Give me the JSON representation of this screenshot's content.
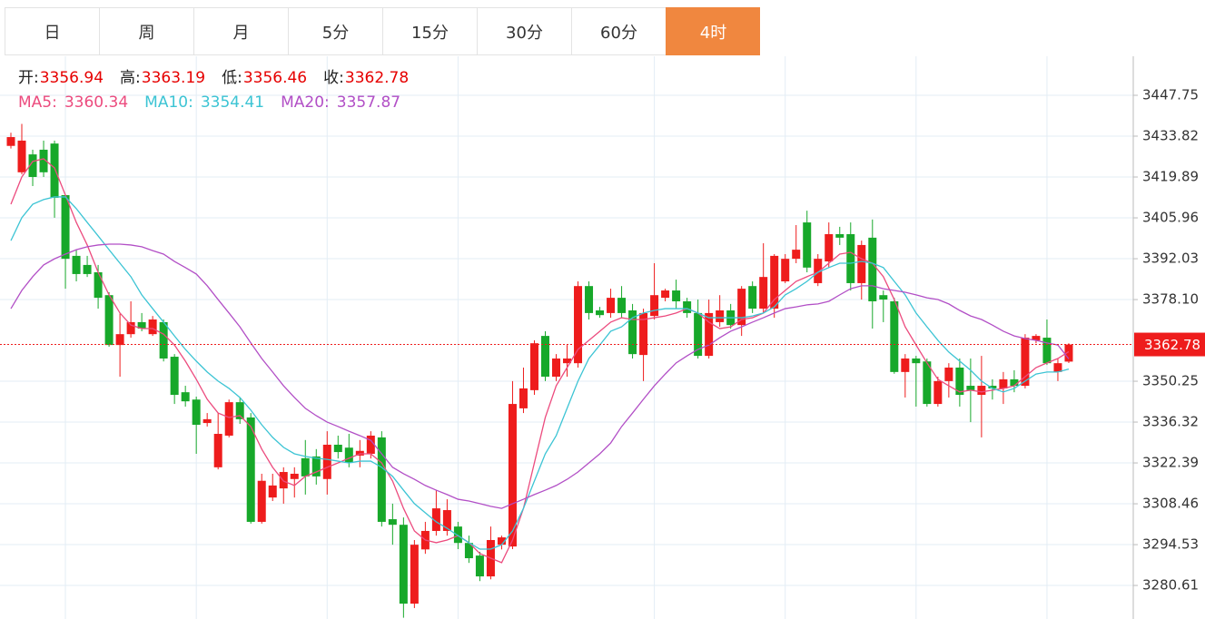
{
  "tabs": [
    "日",
    "周",
    "月",
    "5分",
    "15分",
    "30分",
    "60分",
    "4时"
  ],
  "active_tab": "4时",
  "chart_data": {
    "type": "candlestick",
    "up_color": "#ee1c1c",
    "down_color": "#17a82a",
    "grid": true,
    "ohlc_labels": [
      "开:",
      "高:",
      "低:",
      "收:"
    ],
    "open": [
      3430.5,
      3421.5,
      3427.6,
      3429.2,
      3431.3,
      3413.7,
      3393,
      3389.9,
      3387.4,
      3379.6,
      3362.6,
      3366.3,
      3370.4,
      3366.3,
      3370.4,
      3358.6,
      3346.5,
      3344,
      3336,
      3320.9,
      3331.7,
      3343.1,
      3337.9,
      3302.3,
      3310.6,
      3313.7,
      3316.9,
      3324,
      3324.6,
      3316.9,
      3328.6,
      3327.6,
      3324.9,
      3325.5,
      3331.1,
      3303.2,
      3301.3,
      3274.4,
      3292.9,
      3299.2,
      3299.2,
      3300.7,
      3295.1,
      3290.8,
      3283.7,
      3294.5,
      3293.9,
      3341,
      3347.2,
      3365.7,
      3351.8,
      3356.4,
      3356.4,
      3382.7,
      3374.4,
      3373.5,
      3378.7,
      3374.4,
      3359.2,
      3372.5,
      3378.7,
      3381.2,
      3377.5,
      3373.5,
      3358.9,
      3370.4,
      3374.4,
      3369.4,
      3382.7,
      3375,
      3375,
      3384.3,
      3392,
      3404.4,
      3383.7,
      3391.1,
      3400.4,
      3400.4,
      3383.7,
      3399.2,
      3379.6,
      3377.5,
      3353.4,
      3358,
      3357,
      3342.5,
      3350.3,
      3354.9,
      3348.7,
      3345.6,
      3348.7,
      3347.8,
      3350.9,
      3348.7,
      3364.2,
      3365.1,
      3353.4,
      3356.94
    ],
    "high": [
      3435,
      3438,
      3429.2,
      3432.3,
      3432.3,
      3413.7,
      3395.1,
      3393,
      3389.9,
      3380.6,
      3373.3,
      3377.5,
      3373.5,
      3372.5,
      3371.3,
      3359.5,
      3348.7,
      3345,
      3339.4,
      3339.4,
      3344,
      3344.6,
      3339.4,
      3318.7,
      3318.7,
      3320.9,
      3320.9,
      3330.2,
      3327.1,
      3333.2,
      3331.7,
      3332.3,
      3330.2,
      3333.2,
      3333.2,
      3308.5,
      3303.8,
      3296.1,
      3302.3,
      3313.1,
      3310,
      3302.3,
      3297.6,
      3292.1,
      3300.7,
      3297.6,
      3350.3,
      3354.9,
      3364.2,
      3367.3,
      3359.5,
      3362.6,
      3384.3,
      3384.3,
      3375.6,
      3381.8,
      3382.7,
      3376.6,
      3375,
      3390.5,
      3381.8,
      3384.9,
      3378.7,
      3378.1,
      3378.1,
      3379.6,
      3376.6,
      3382.7,
      3384.3,
      3397.3,
      3393.6,
      3393.6,
      3403.5,
      3408.4,
      3393.6,
      3404.4,
      3402.9,
      3404.4,
      3398.2,
      3405.4,
      3381.2,
      3378.7,
      3359.5,
      3358.9,
      3358,
      3351.8,
      3356.4,
      3358,
      3358,
      3358.9,
      3350.9,
      3353.4,
      3354,
      3366.3,
      3366.3,
      3371.3,
      3358,
      3363.19
    ],
    "low": [
      3429.6,
      3420.8,
      3416.8,
      3419.9,
      3406,
      3381.8,
      3384.3,
      3385.8,
      3375,
      3362,
      3351.8,
      3365.1,
      3367.3,
      3365.7,
      3357,
      3342.5,
      3341.6,
      3325.5,
      3334.8,
      3320.2,
      3331.1,
      3335.7,
      3301.7,
      3301.7,
      3309.4,
      3308.5,
      3310.6,
      3311.6,
      3315,
      3311.6,
      3323.9,
      3320.9,
      3320.9,
      3323.9,
      3300.7,
      3294.5,
      3269.6,
      3272.9,
      3291.4,
      3297.6,
      3297.6,
      3293,
      3288.3,
      3282.1,
      3282.7,
      3292.9,
      3293,
      3339.4,
      3345.6,
      3350.3,
      3350.3,
      3351.8,
      3354.9,
      3371.3,
      3371.9,
      3371.9,
      3371.9,
      3358,
      3350.3,
      3371.3,
      3377.5,
      3375,
      3371.9,
      3358,
      3358,
      3368.8,
      3368.2,
      3365.7,
      3373.5,
      3373.5,
      3371.9,
      3383.7,
      3390.5,
      3387.4,
      3382.7,
      3389,
      3396.7,
      3381.2,
      3378.1,
      3368.2,
      3370.4,
      3352.8,
      3344.7,
      3341.6,
      3341.6,
      3341.6,
      3344.7,
      3341.6,
      3336.3,
      3331.1,
      3344,
      3342.5,
      3346.5,
      3347.8,
      3363.2,
      3355.8,
      3350.3,
      3356.46
    ],
    "close": [
      3433.5,
      3432.3,
      3419.9,
      3421.5,
      3412.8,
      3392,
      3386.8,
      3386.8,
      3378.7,
      3362.6,
      3366.3,
      3370.4,
      3368.2,
      3371.3,
      3358,
      3345.6,
      3343.4,
      3335.4,
      3337.3,
      3332.3,
      3343.1,
      3337.3,
      3302.3,
      3316.3,
      3314.7,
      3319.3,
      3318.7,
      3317.8,
      3317.8,
      3328.6,
      3326.1,
      3322.4,
      3326.5,
      3331.7,
      3302.3,
      3301.3,
      3274.4,
      3294.5,
      3299.2,
      3306.9,
      3306.3,
      3295.1,
      3289.9,
      3283.7,
      3296.1,
      3297,
      3342.5,
      3347.8,
      3363.2,
      3351.8,
      3358,
      3358,
      3382.7,
      3373.5,
      3372.8,
      3378.7,
      3373.5,
      3359.5,
      3373.5,
      3379.6,
      3381.2,
      3377.5,
      3373.5,
      3358.9,
      3373.5,
      3374.4,
      3369.4,
      3381.8,
      3375,
      3385.8,
      3393,
      3392,
      3395.1,
      3389,
      3392,
      3400.4,
      3399.2,
      3383.7,
      3396.7,
      3377.5,
      3378.1,
      3353.4,
      3358,
      3356.4,
      3342.5,
      3350.3,
      3354.9,
      3345.6,
      3347.2,
      3348.7,
      3347.8,
      3350.9,
      3348.7,
      3365.1,
      3365.7,
      3356.4,
      3356.4,
      3362.78
    ],
    "series": [
      {
        "name": "MA5:",
        "color": "#ec4b7e",
        "values": [
          3410.6,
          3419.9,
          3425.2,
          3426.1,
          3423.0,
          3413.7,
          3404.4,
          3396.7,
          3387.4,
          3379.7,
          3373.5,
          3369.4,
          3368.2,
          3368.2,
          3366.3,
          3362.6,
          3357.1,
          3350.9,
          3344.1,
          3339.4,
          3337.9,
          3338.5,
          3334.8,
          3327.1,
          3320.9,
          3316.2,
          3314.7,
          3317.8,
          3319.3,
          3320.9,
          3322.4,
          3324.0,
          3325.5,
          3325.5,
          3322.4,
          3316.2,
          3306.9,
          3299.2,
          3296.1,
          3295.2,
          3296.1,
          3297.6,
          3295.2,
          3291.5,
          3289.9,
          3288.4,
          3296.1,
          3306.9,
          3322.4,
          3337.9,
          3348.7,
          3354.9,
          3361.1,
          3364.2,
          3367.3,
          3370.4,
          3371.9,
          3371.3,
          3371.3,
          3371.9,
          3372.5,
          3373.5,
          3375.0,
          3373.5,
          3370.4,
          3368.2,
          3368.8,
          3371.3,
          3371.9,
          3373.5,
          3378.1,
          3381.2,
          3384.3,
          3385.9,
          3387.4,
          3390.5,
          3393.6,
          3394.2,
          3392.0,
          3390.5,
          3385.9,
          3378.1,
          3368.8,
          3362.6,
          3356.5,
          3350.9,
          3348.7,
          3346.6,
          3347.2,
          3346.6,
          3347.2,
          3347.8,
          3348.7,
          3351.8,
          3354.9,
          3356.5,
          3358.0,
          3360.34
        ]
      },
      {
        "name": "MA10:",
        "color": "#3cc4d4",
        "values": [
          3398.2,
          3406.0,
          3410.6,
          3412.2,
          3413.1,
          3413.1,
          3409.1,
          3404.4,
          3399.8,
          3395.1,
          3390.5,
          3385.9,
          3379.7,
          3375.0,
          3370.4,
          3365.7,
          3361.1,
          3357.1,
          3353.4,
          3350.3,
          3347.8,
          3344.7,
          3340.4,
          3335.4,
          3331.1,
          3327.7,
          3325.5,
          3324.6,
          3324.0,
          3323.6,
          3323.0,
          3322.4,
          3323.0,
          3323.0,
          3320.9,
          3317.8,
          3313.1,
          3308.5,
          3305.4,
          3302.3,
          3300.1,
          3297.6,
          3295.2,
          3293.0,
          3293.0,
          3294.5,
          3299.2,
          3306.9,
          3316.2,
          3325.5,
          3331.7,
          3341.0,
          3350.3,
          3358.0,
          3362.6,
          3367.3,
          3368.8,
          3371.9,
          3373.5,
          3374.4,
          3375.0,
          3375.0,
          3375.0,
          3373.5,
          3371.9,
          3371.9,
          3371.9,
          3371.9,
          3372.5,
          3373.5,
          3375.6,
          3379.7,
          3381.8,
          3384.3,
          3387.4,
          3389.0,
          3390.5,
          3390.5,
          3391.1,
          3390.5,
          3389.0,
          3384.3,
          3379.7,
          3373.5,
          3368.8,
          3364.2,
          3360.2,
          3357.1,
          3354.0,
          3350.3,
          3347.8,
          3346.6,
          3347.8,
          3350.3,
          3352.7,
          3353.4,
          3353.4,
          3354.41
        ]
      },
      {
        "name": "MA20:",
        "color": "#b24fc6",
        "values": [
          3375.0,
          3381.2,
          3385.9,
          3389.9,
          3392.0,
          3393.6,
          3395.1,
          3396.1,
          3396.7,
          3397.0,
          3397.0,
          3396.7,
          3396.1,
          3394.8,
          3393.6,
          3391.1,
          3389.0,
          3386.8,
          3382.8,
          3378.1,
          3373.5,
          3368.8,
          3363.3,
          3358.0,
          3353.4,
          3348.7,
          3344.7,
          3341.0,
          3338.5,
          3336.3,
          3334.8,
          3333.2,
          3331.7,
          3330.1,
          3325.5,
          3320.9,
          3318.7,
          3316.8,
          3314.7,
          3313.1,
          3311.6,
          3310.0,
          3309.4,
          3308.5,
          3307.6,
          3306.9,
          3308.5,
          3310.0,
          3311.6,
          3313.1,
          3314.7,
          3316.8,
          3319.3,
          3322.4,
          3325.5,
          3329.2,
          3334.8,
          3339.4,
          3344.1,
          3348.7,
          3352.7,
          3356.5,
          3358.9,
          3361.1,
          3362.6,
          3365.1,
          3367.3,
          3368.8,
          3370.4,
          3371.9,
          3373.5,
          3375.0,
          3375.6,
          3376.3,
          3376.6,
          3377.5,
          3379.7,
          3381.8,
          3382.8,
          3382.8,
          3381.8,
          3381.2,
          3380.6,
          3379.7,
          3378.7,
          3378.1,
          3376.6,
          3374.4,
          3372.5,
          3371.3,
          3369.4,
          3367.3,
          3365.7,
          3364.8,
          3364.2,
          3363.3,
          3362.6,
          3357.87
        ]
      }
    ],
    "ylim": [
      3269.17,
      3461.06
    ],
    "yticks": [
      3447.75,
      3433.82,
      3419.89,
      3405.96,
      3392.03,
      {
        "value": 3378.1,
        "label": "3378.10"
      },
      3350.25,
      3336.32,
      3322.39,
      3308.46,
      3294.53,
      3280.61
    ]
  }
}
